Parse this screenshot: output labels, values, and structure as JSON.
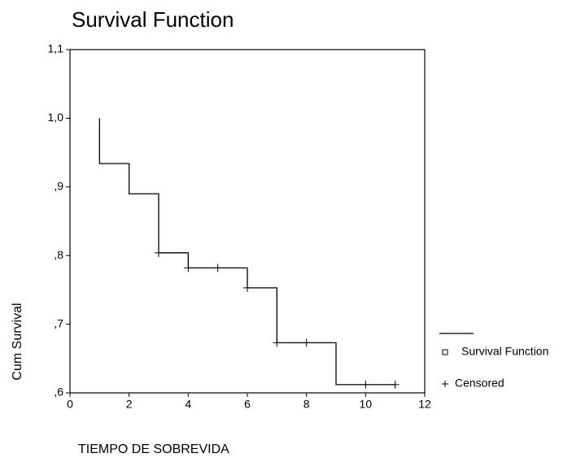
{
  "chart_data": {
    "type": "line",
    "title": "Survival Function",
    "x_label": "TIEMPO DE SOBREVIDA",
    "y_label": "Cum Survival",
    "xlim": [
      0,
      12
    ],
    "xticks": [
      0,
      2,
      4,
      6,
      8,
      10,
      12
    ],
    "ylim": [
      0.6,
      1.1
    ],
    "yticks": [
      {
        "value": 0.6,
        "label": ",6"
      },
      {
        "value": 0.7,
        "label": ",7"
      },
      {
        "value": 0.8,
        "label": ",8"
      },
      {
        "value": 0.9,
        "label": ",9"
      },
      {
        "value": 1.0,
        "label": "1,0"
      },
      {
        "value": 1.1,
        "label": "1,1"
      }
    ],
    "step": true,
    "series": [
      {
        "name": "Survival Function",
        "color": "#000000",
        "marker": "line",
        "x": [
          1,
          1,
          2,
          3,
          4,
          6,
          7,
          9,
          11
        ],
        "values": [
          1.0,
          0.934,
          0.89,
          0.804,
          0.782,
          0.753,
          0.673,
          0.612,
          0.612
        ]
      },
      {
        "name": "Censored",
        "color": "#000000",
        "marker": "plus",
        "x": [
          3,
          4,
          5,
          6,
          7,
          8,
          10,
          11
        ],
        "values": [
          0.804,
          0.782,
          0.782,
          0.753,
          0.673,
          0.673,
          0.612,
          0.612
        ]
      }
    ]
  }
}
